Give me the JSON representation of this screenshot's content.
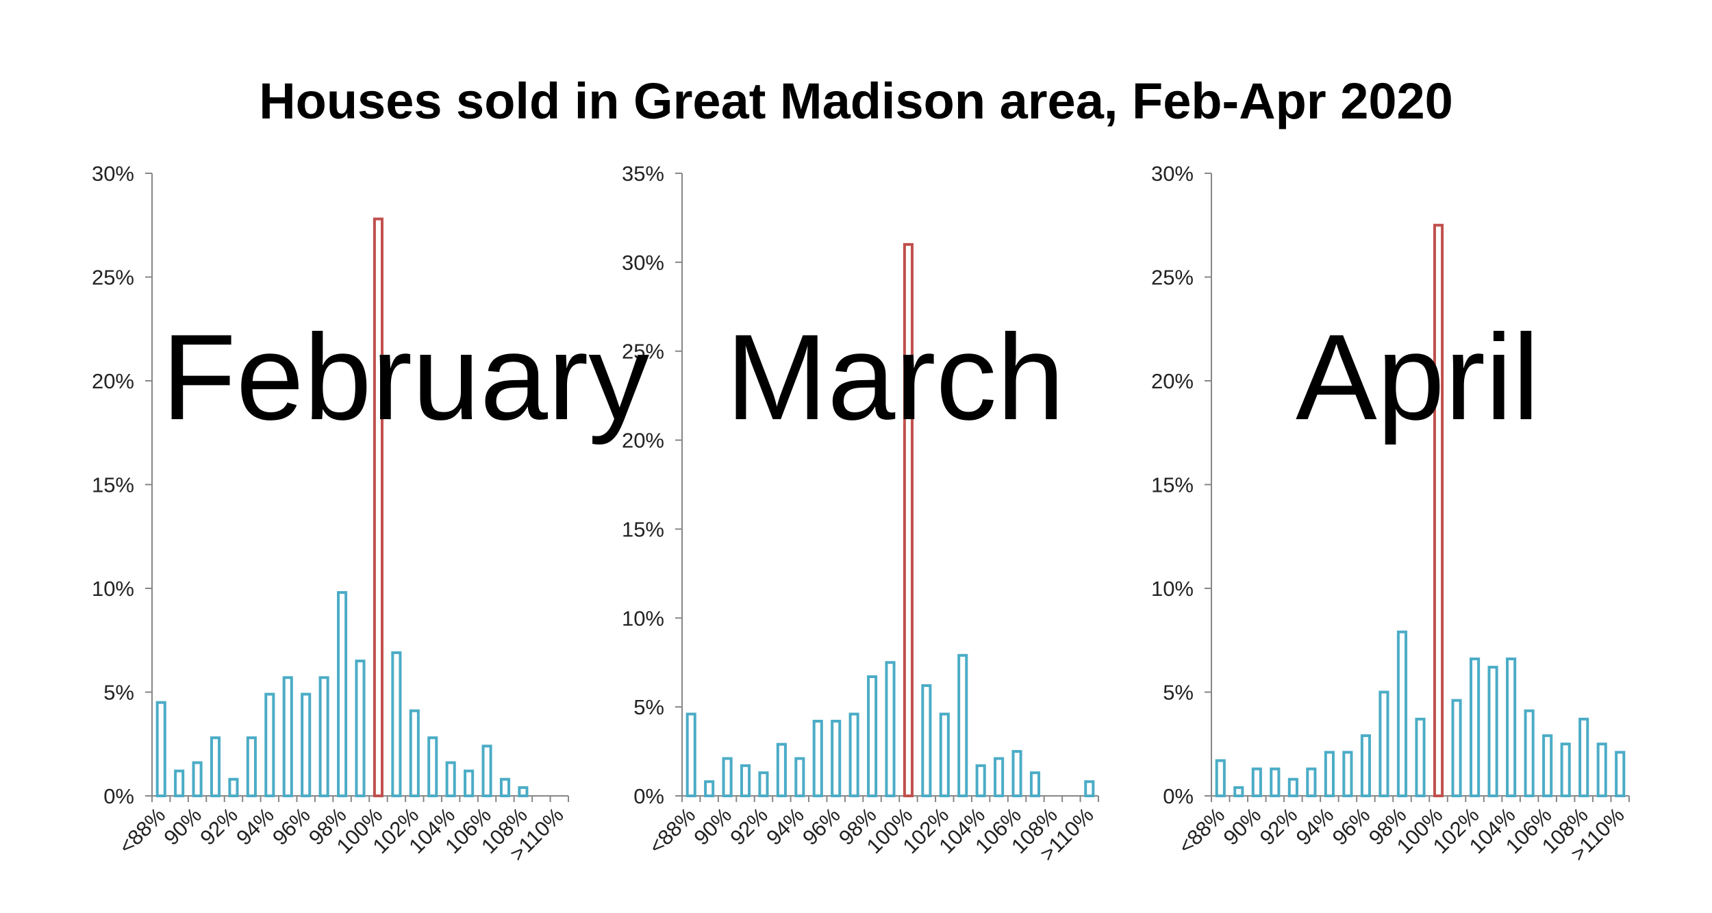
{
  "title": "Houses sold in Great Madison area, Feb-Apr 2020",
  "colors": {
    "normal": "#4BACC6",
    "highlight": "#C0504D",
    "axis": "#868686",
    "text": "#000000"
  },
  "chart_data": [
    {
      "type": "bar",
      "label": "February",
      "categories": [
        "<88%",
        "89%",
        "90%",
        "91%",
        "92%",
        "93%",
        "94%",
        "95%",
        "96%",
        "97%",
        "98%",
        "99%",
        "100%",
        "101%",
        "102%",
        "103%",
        "104%",
        "105%",
        "106%",
        "107%",
        "108%",
        "109%",
        ">110%"
      ],
      "tick_labels": [
        "<88%",
        "90%",
        "92%",
        "94%",
        "96%",
        "98%",
        "100%",
        "102%",
        "104%",
        "106%",
        "108%",
        ">110%"
      ],
      "values": [
        4.5,
        1.2,
        1.6,
        2.8,
        0.8,
        2.8,
        4.9,
        5.7,
        4.9,
        5.7,
        9.8,
        6.5,
        27.8,
        6.9,
        4.1,
        2.8,
        1.6,
        1.2,
        2.4,
        0.8,
        0.4,
        0,
        0
      ],
      "highlight": "100%",
      "ylim": [
        0,
        30
      ],
      "yticks": [
        "0%",
        "5%",
        "10%",
        "15%",
        "20%",
        "25%",
        "30%"
      ]
    },
    {
      "type": "bar",
      "label": "March",
      "categories": [
        "<88%",
        "89%",
        "90%",
        "91%",
        "92%",
        "93%",
        "94%",
        "95%",
        "96%",
        "97%",
        "98%",
        "99%",
        "100%",
        "101%",
        "102%",
        "103%",
        "104%",
        "105%",
        "106%",
        "107%",
        "108%",
        "109%",
        ">110%"
      ],
      "tick_labels": [
        "<88%",
        "90%",
        "92%",
        "94%",
        "96%",
        "98%",
        "100%",
        "102%",
        "104%",
        "106%",
        "108%",
        ">110%"
      ],
      "values": [
        4.6,
        0.8,
        2.1,
        1.7,
        1.3,
        2.9,
        2.1,
        4.2,
        4.2,
        4.6,
        6.7,
        7.5,
        31.0,
        6.2,
        4.6,
        7.9,
        1.7,
        2.1,
        2.5,
        1.3,
        0,
        0,
        0.8
      ],
      "highlight": "100%",
      "ylim": [
        0,
        35
      ],
      "yticks": [
        "0%",
        "5%",
        "10%",
        "15%",
        "20%",
        "25%",
        "30%",
        "35%"
      ]
    },
    {
      "type": "bar",
      "label": "April",
      "categories": [
        "<88%",
        "89%",
        "90%",
        "91%",
        "92%",
        "93%",
        "94%",
        "95%",
        "96%",
        "97%",
        "98%",
        "99%",
        "100%",
        "101%",
        "102%",
        "103%",
        "104%",
        "105%",
        "106%",
        "107%",
        "108%",
        "109%",
        ">110%"
      ],
      "tick_labels": [
        "<88%",
        "90%",
        "92%",
        "94%",
        "96%",
        "98%",
        "100%",
        "102%",
        "104%",
        "106%",
        "108%",
        ">110%"
      ],
      "values": [
        1.7,
        0.4,
        1.3,
        1.3,
        0.8,
        1.3,
        2.1,
        2.1,
        2.9,
        5.0,
        7.9,
        3.7,
        27.5,
        4.6,
        6.6,
        6.2,
        6.6,
        4.1,
        2.9,
        2.5,
        3.7,
        2.5,
        2.1
      ],
      "highlight": "100%",
      "ylim": [
        0,
        30
      ],
      "yticks": [
        "0%",
        "5%",
        "10%",
        "15%",
        "20%",
        "25%",
        "30%"
      ]
    }
  ]
}
